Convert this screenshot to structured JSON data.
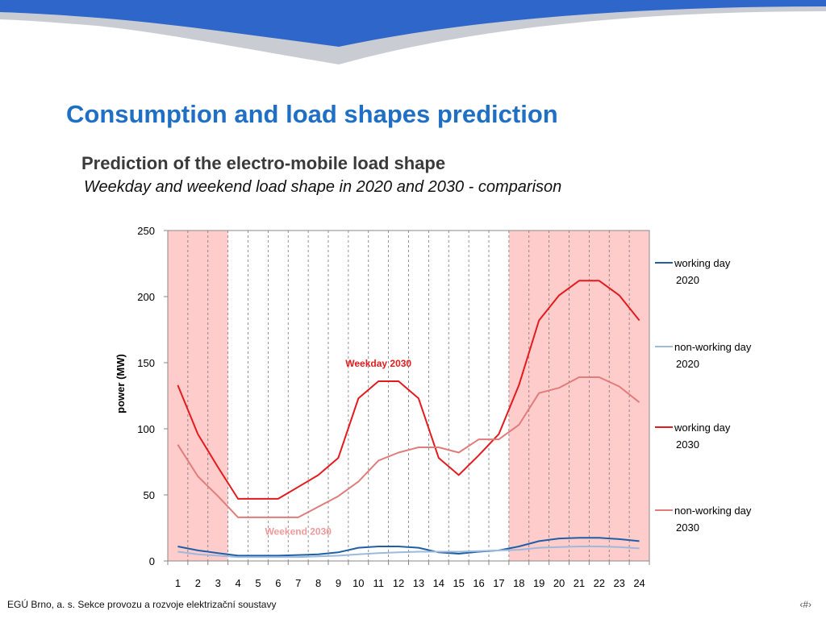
{
  "slide": {
    "title": "Consumption and load shapes prediction",
    "heading": "Prediction of the electro-mobile load shape",
    "subheading": "Weekday and weekend load shape in 2020 and 2030 - comparison",
    "footer_left": "EGÚ Brno, a. s.   Sekce provozu a rozvoje elektrizační soustavy",
    "footer_right": "‹#›"
  },
  "colors": {
    "title": "#1f6fc5",
    "banner": "#2f66c9",
    "shade": "#ffcccc"
  },
  "chart_data": {
    "type": "line",
    "title": "",
    "xlabel": "",
    "ylabel": "power (MW)",
    "categories": [
      "1",
      "2",
      "3",
      "4",
      "5",
      "6",
      "7",
      "8",
      "9",
      "10",
      "11",
      "12",
      "13",
      "14",
      "15",
      "16",
      "17",
      "18",
      "19",
      "20",
      "21",
      "22",
      "23",
      "24"
    ],
    "ylim": [
      0,
      250
    ],
    "yticks": [
      0,
      50,
      100,
      150,
      200,
      250
    ],
    "grid": "vertical dashed",
    "legend": "right",
    "shaded_categories": [
      [
        1,
        3
      ],
      [
        18,
        24
      ]
    ],
    "series": [
      {
        "name": "working day 2020",
        "name_lines": [
          "working day",
          "2020"
        ],
        "color": "#1f5fa6",
        "values": [
          11,
          8,
          6,
          4,
          4,
          4,
          4.5,
          5,
          6.5,
          10,
          11,
          11,
          10,
          6.5,
          5.5,
          7,
          8,
          11,
          15,
          17,
          17.5,
          17.5,
          16.5,
          15
        ]
      },
      {
        "name": "non-working day 2020",
        "name_lines": [
          "non-working day",
          "2020"
        ],
        "color": "#9db9dc",
        "values": [
          7,
          5,
          4,
          3,
          3,
          3,
          3,
          3.5,
          4,
          5,
          6,
          6.5,
          7,
          7,
          7,
          7.5,
          8,
          8.5,
          10,
          10.5,
          11,
          11,
          10.5,
          9.5
        ]
      },
      {
        "name": "working day 2030",
        "name_lines": [
          "working day",
          "2030"
        ],
        "color": "#e41a1c",
        "values": [
          133,
          96,
          71,
          47,
          47,
          47,
          56,
          65,
          78,
          123,
          136,
          136,
          123,
          78,
          65,
          80,
          96,
          133,
          182,
          201,
          212,
          212,
          201,
          182
        ]
      },
      {
        "name": "non-working day 2030",
        "name_lines": [
          "non-working day",
          "2030"
        ],
        "color": "#e07c7c",
        "values": [
          88,
          64,
          49,
          33,
          33,
          33,
          33,
          41,
          49,
          60,
          76,
          82,
          86,
          86,
          82,
          92,
          92,
          103,
          127,
          131,
          139,
          139,
          132,
          120
        ]
      }
    ],
    "annotations": [
      {
        "text": "Weekday 2030",
        "color": "#e41a1c",
        "at_category": 11,
        "at_value": 150
      },
      {
        "text": "Weekend 2030",
        "color": "#f09a9a",
        "at_category": 7,
        "at_value": 23
      }
    ]
  }
}
